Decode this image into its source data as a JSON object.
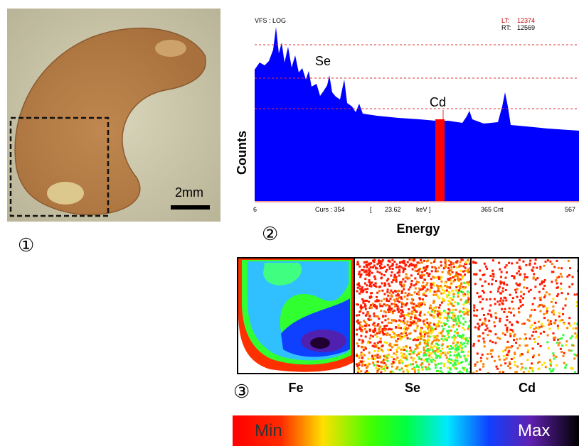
{
  "photo": {
    "scale_label": "2mm",
    "panel_number": "①"
  },
  "spectrum": {
    "mode_label": "VFS : LOG",
    "lt_label": "LT:",
    "lt_value": "12374",
    "rt_label": "RT:",
    "rt_value": "12569",
    "peak_labels": [
      "Se",
      "Cd"
    ],
    "y_axis_label": "Counts",
    "x_axis_label": "Energy",
    "footer": [
      "6",
      "Curs : 354",
      "[",
      "23.62",
      "keV ]",
      "365 Cnt",
      "567"
    ],
    "panel_number": "②"
  },
  "maps": {
    "panels": [
      "Fe",
      "Se",
      "Cd"
    ],
    "panel_number": "③"
  },
  "colorbar": {
    "min_label": "Min",
    "max_label": "Max"
  }
}
